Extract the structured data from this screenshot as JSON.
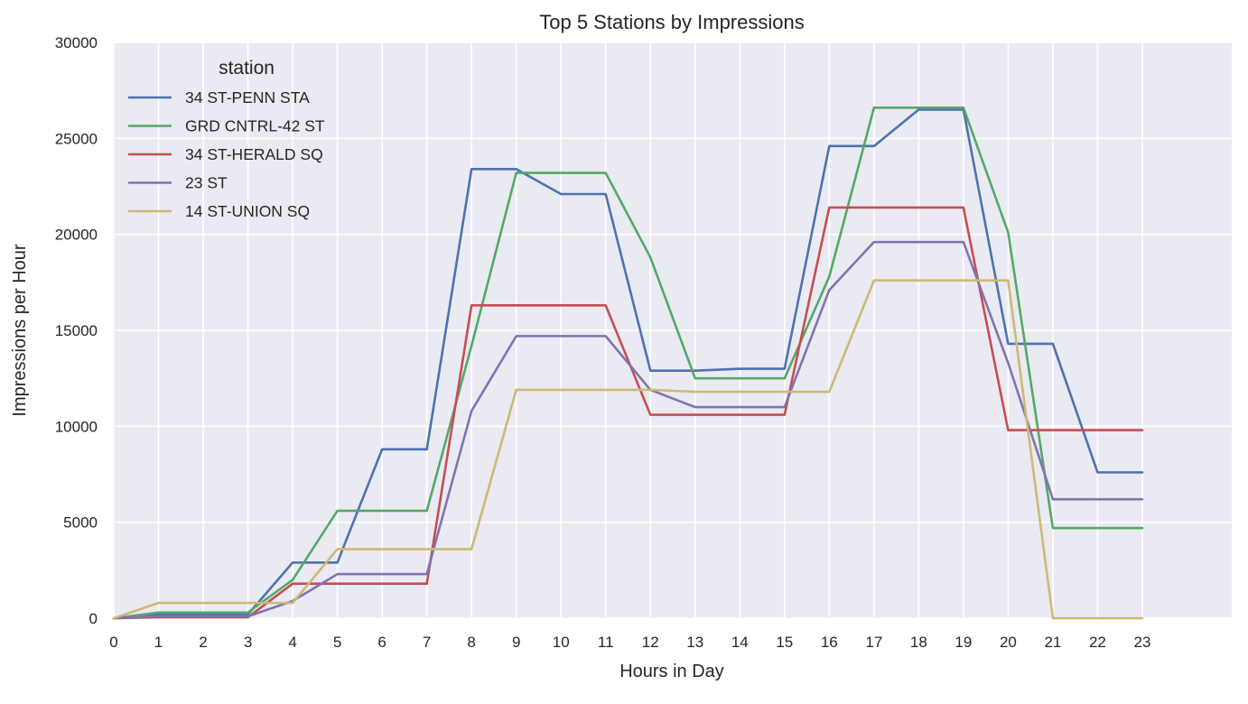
{
  "chart_data": {
    "type": "line",
    "title": "Top 5 Stations by Impressions",
    "xlabel": "Hours in Day",
    "ylabel": "Impressions per Hour",
    "xlim": [
      0,
      25
    ],
    "ylim": [
      0,
      30000
    ],
    "x": [
      0,
      1,
      2,
      3,
      4,
      5,
      6,
      7,
      8,
      9,
      10,
      11,
      12,
      13,
      14,
      15,
      16,
      17,
      18,
      19,
      20,
      21,
      22,
      23
    ],
    "yticks": [
      0,
      5000,
      10000,
      15000,
      20000,
      25000,
      30000
    ],
    "legend_title": "station",
    "legend_position": "top-left",
    "grid": true,
    "background": "#eaeaf2",
    "series": [
      {
        "name": "34 ST-PENN STA",
        "color": "#4c72b0",
        "values": [
          0,
          200,
          200,
          200,
          2900,
          2900,
          8800,
          8800,
          23400,
          23400,
          22100,
          22100,
          12900,
          12900,
          13000,
          13000,
          24600,
          24600,
          26500,
          26500,
          14300,
          14300,
          7600,
          7600
        ]
      },
      {
        "name": "GRD CNTRL-42 ST",
        "color": "#55a868",
        "values": [
          0,
          300,
          300,
          300,
          2000,
          5600,
          5600,
          5600,
          14200,
          23200,
          23200,
          23200,
          18800,
          12500,
          12500,
          12500,
          17800,
          26600,
          26600,
          26600,
          20100,
          4700,
          4700,
          4700
        ]
      },
      {
        "name": "34 ST-HERALD SQ",
        "color": "#c44e52",
        "values": [
          0,
          50,
          50,
          50,
          1800,
          1800,
          1800,
          1800,
          16300,
          16300,
          16300,
          16300,
          10600,
          10600,
          10600,
          10600,
          21400,
          21400,
          21400,
          21400,
          9800,
          9800,
          9800,
          9800
        ]
      },
      {
        "name": "23 ST",
        "color": "#8172b2",
        "values": [
          0,
          100,
          100,
          100,
          900,
          2300,
          2300,
          2300,
          10800,
          14700,
          14700,
          14700,
          11900,
          11000,
          11000,
          11000,
          17100,
          19600,
          19600,
          19600,
          13300,
          6200,
          6200,
          6200
        ]
      },
      {
        "name": "14 ST-UNION SQ",
        "color": "#ccb974",
        "values": [
          0,
          800,
          800,
          800,
          800,
          3600,
          3600,
          3600,
          3600,
          11900,
          11900,
          11900,
          11900,
          11800,
          11800,
          11800,
          11800,
          17600,
          17600,
          17600,
          17600,
          0,
          0,
          0
        ]
      }
    ]
  }
}
